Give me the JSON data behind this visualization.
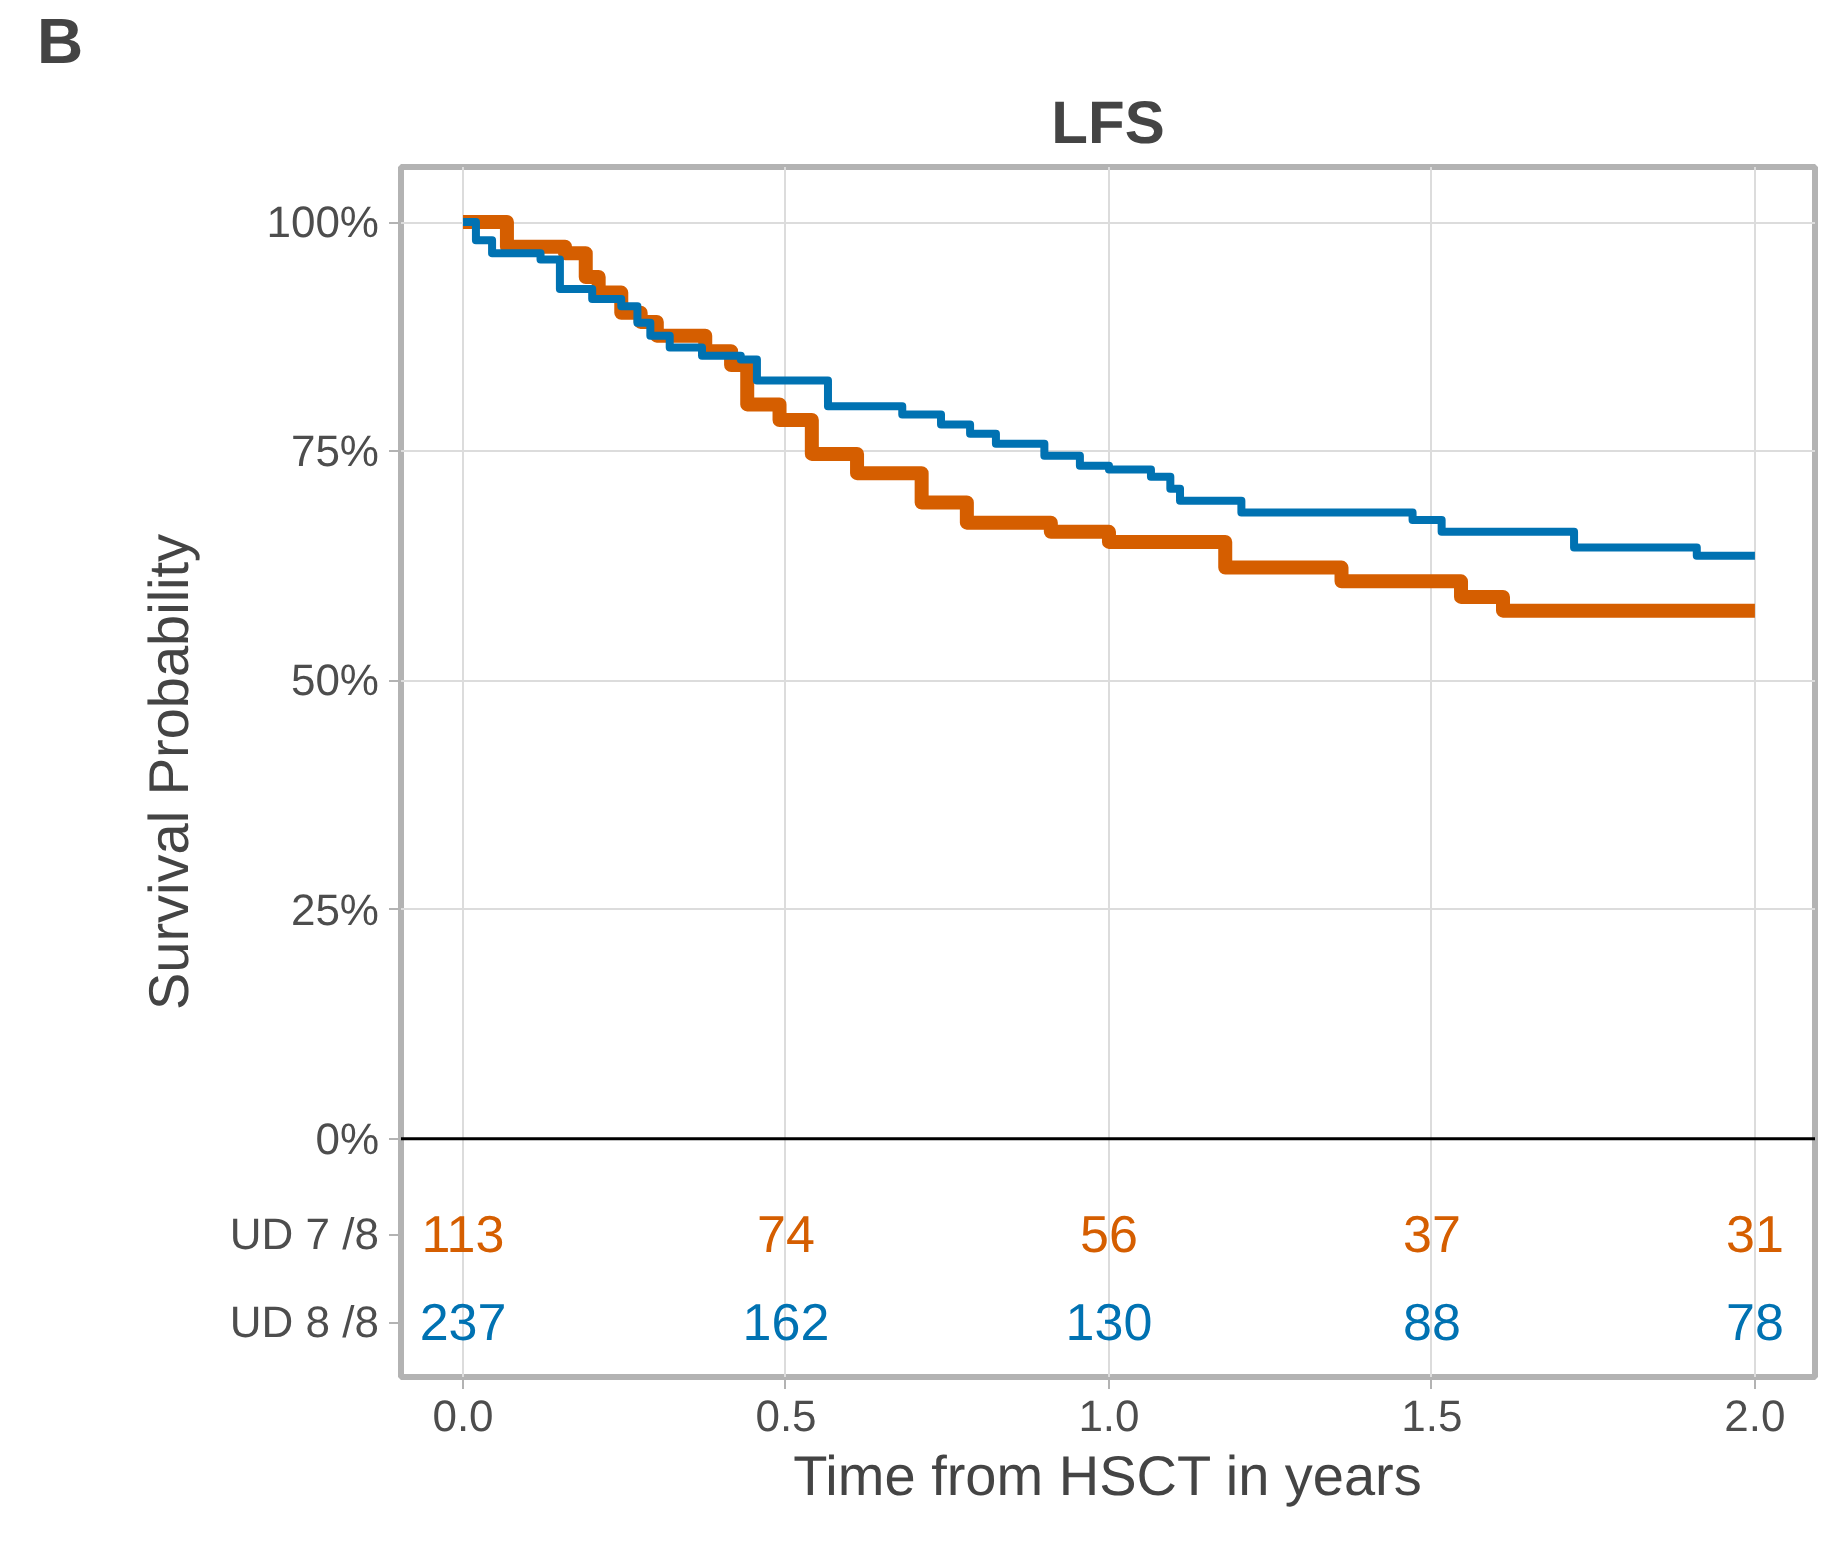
{
  "chart_data": {
    "type": "step",
    "title": "LFS",
    "xlabel": "Time from HSCT in years",
    "ylabel": "Survival Probability",
    "xlim": [
      -0.096,
      2.093
    ],
    "ylim": [
      -26,
      106
    ],
    "xticks": [
      {
        "value": 0,
        "label": "0.0"
      },
      {
        "value": 0.5,
        "label": "0.5"
      },
      {
        "value": 1,
        "label": "1.0"
      },
      {
        "value": 1.5,
        "label": "1.5"
      },
      {
        "value": 2,
        "label": "2.0"
      }
    ],
    "yticks": [
      {
        "value": 0,
        "label": "0%"
      },
      {
        "value": 25,
        "label": "25%"
      },
      {
        "value": 50,
        "label": "50%"
      },
      {
        "value": 75,
        "label": "75%"
      },
      {
        "value": 100,
        "label": "100%"
      }
    ],
    "grid": true,
    "line_style": "solid",
    "marker": "none",
    "ref_lines": [
      {
        "axis": "y",
        "value": 0,
        "color": "#000000"
      }
    ],
    "series": [
      {
        "color": "#d55e00",
        "x": [
          0,
          0.068,
          0.158,
          0.19,
          0.21,
          0.245,
          0.275,
          0.3,
          0.375,
          0.415,
          0.44,
          0.49,
          0.54,
          0.61,
          0.71,
          0.78,
          0.91,
          1.0,
          1.18,
          1.36,
          1.545,
          1.61,
          2.0
        ],
        "values": [
          100,
          97.3,
          96.6,
          94,
          92.3,
          90.1,
          89.1,
          87.6,
          85.9,
          84.4,
          80.1,
          78.4,
          74.7,
          72.6,
          69.4,
          67.2,
          66.2,
          65.1,
          62.3,
          60.8,
          59.1,
          57.6,
          57.6
        ]
      },
      {
        "color": "#0072b2",
        "x": [
          0,
          0.02,
          0.045,
          0.12,
          0.15,
          0.2,
          0.245,
          0.27,
          0.29,
          0.32,
          0.37,
          0.43,
          0.455,
          0.565,
          0.68,
          0.74,
          0.785,
          0.825,
          0.9,
          0.955,
          1.0,
          1.065,
          1.095,
          1.11,
          1.205,
          1.47,
          1.515,
          1.72,
          1.91,
          2.0
        ],
        "values": [
          100,
          98,
          96.6,
          95.9,
          92.7,
          91.6,
          90.8,
          89,
          87.6,
          86.3,
          85.4,
          85.0,
          82.7,
          79.9,
          79.0,
          77.9,
          76.9,
          75.8,
          74.5,
          73.4,
          73.0,
          72.2,
          70.9,
          69.6,
          68.3,
          67.5,
          66.2,
          64.5,
          63.6,
          63.6
        ]
      }
    ],
    "annotations": [
      "B",
      "UD 7 /8",
      "113",
      "74",
      "56",
      "37",
      "31",
      "UD 8 /8",
      "237",
      "162",
      "130",
      "88",
      "78"
    ]
  }
}
